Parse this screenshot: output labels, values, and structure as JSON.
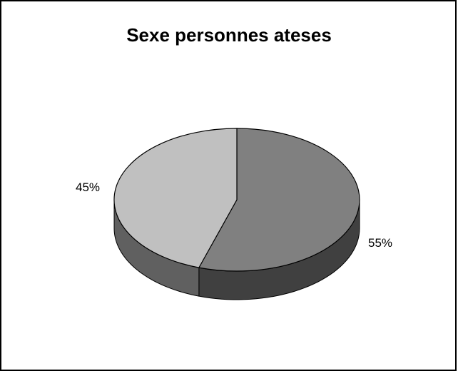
{
  "chart_data": {
    "type": "pie",
    "title": "Sexe personnes ateses",
    "slices": [
      {
        "label": "55%",
        "value": 55,
        "color": "#808080",
        "side_color": "#404040"
      },
      {
        "label": "45%",
        "value": 45,
        "color": "#c0c0c0",
        "side_color": "#606060"
      }
    ],
    "three_d": true,
    "legend": "none"
  }
}
